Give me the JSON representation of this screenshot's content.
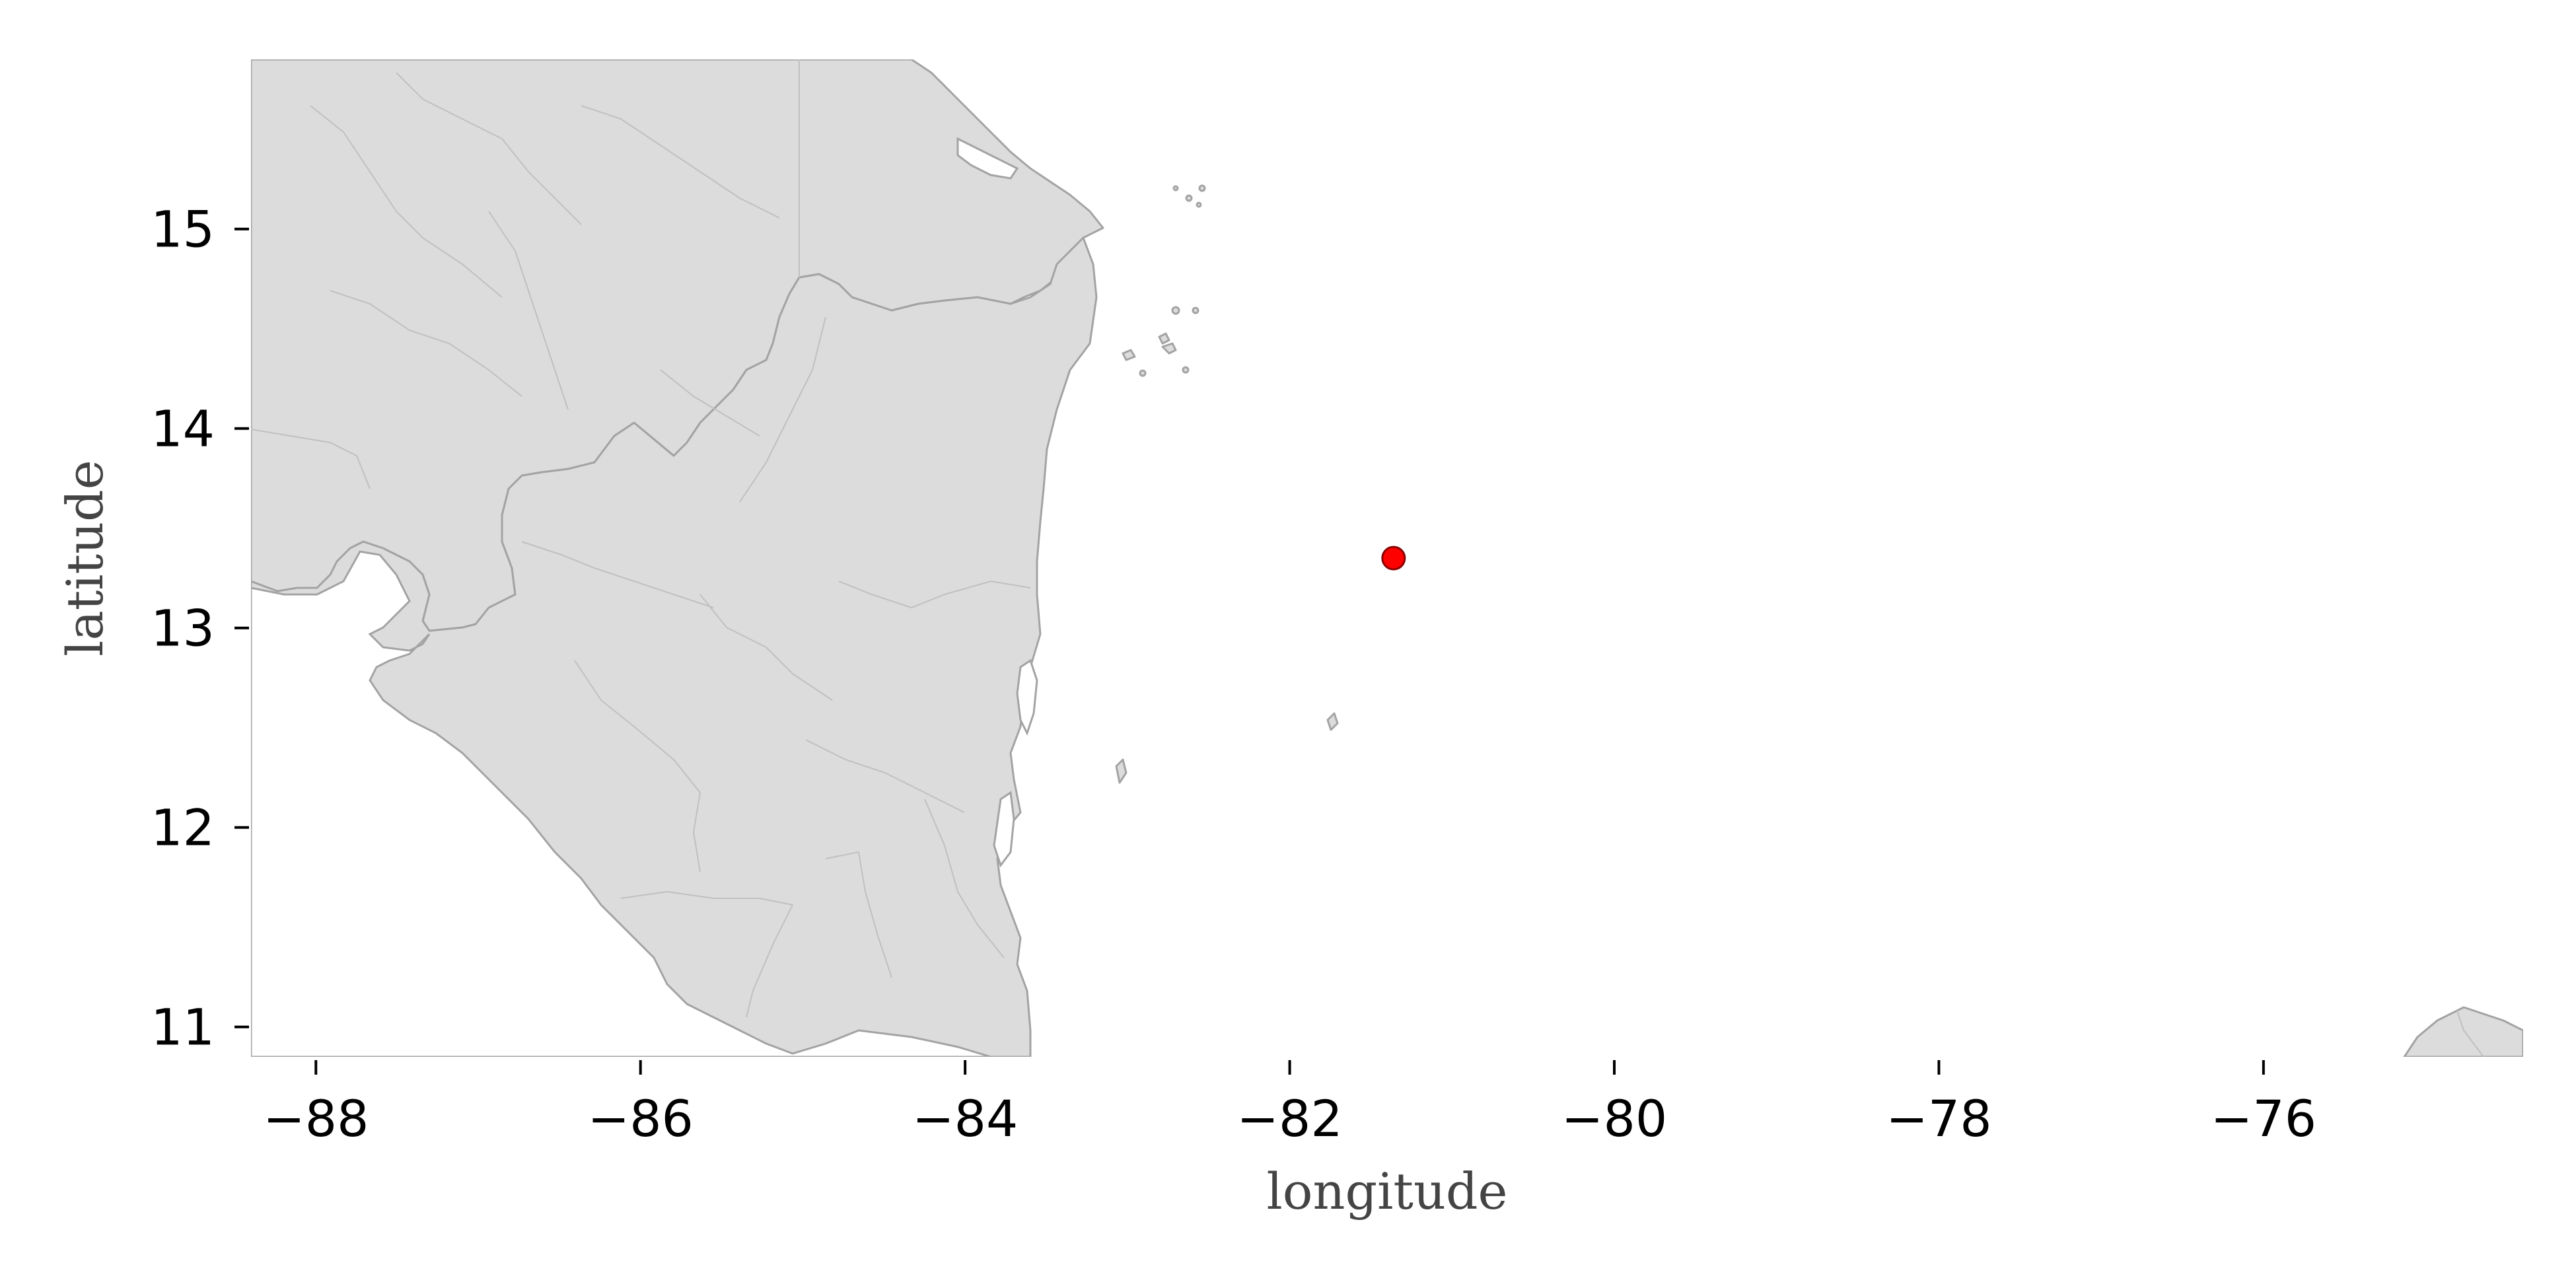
{
  "map": {
    "xlabel": "longitude",
    "ylabel": "latitude",
    "xlim": [
      -88.4,
      -74.4
    ],
    "ylim": [
      10.85,
      15.85
    ],
    "x_ticks": [
      -88,
      -86,
      -84,
      -82,
      -80,
      -78,
      -76
    ],
    "y_ticks": [
      11,
      12,
      13,
      14,
      15
    ],
    "x_tick_labels": [
      "−88",
      "−86",
      "−84",
      "−82",
      "−80",
      "−78",
      "−76"
    ],
    "y_tick_labels": [
      "11",
      "12",
      "13",
      "14",
      "15"
    ],
    "land_color": "#dcdcdc",
    "coast_color": "#a3a3a3",
    "marker": {
      "lon": -81.36,
      "lat": 13.35,
      "color": "#ff0000",
      "edge_color": "#8b0000"
    }
  }
}
